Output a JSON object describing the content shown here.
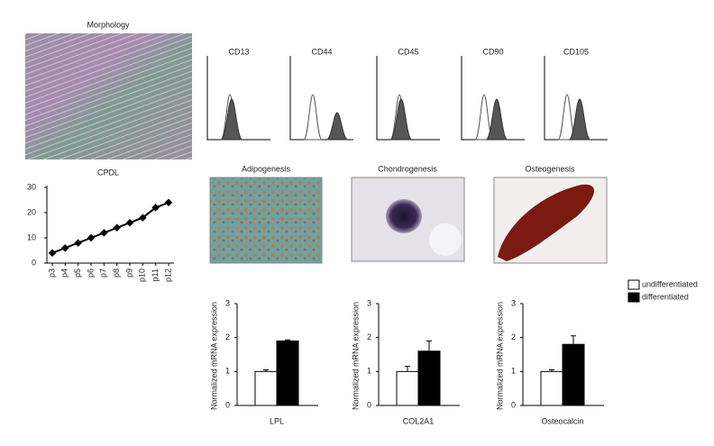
{
  "panels": {
    "morphology": {
      "title": "Morphology"
    },
    "flow_cytometry": [
      {
        "label": "CD13"
      },
      {
        "label": "CD44"
      },
      {
        "label": "CD45"
      },
      {
        "label": "CD90"
      },
      {
        "label": "CD105"
      }
    ],
    "differentiation": [
      {
        "label": "Adipogenesis"
      },
      {
        "label": "Chondrogenesis"
      },
      {
        "label": "Osteogenesis"
      }
    ]
  },
  "chart_data": [
    {
      "type": "line",
      "title": "CPDL",
      "categories": [
        "p3",
        "p4",
        "p5",
        "p6",
        "p7",
        "p8",
        "p9",
        "p10",
        "p11",
        "p12"
      ],
      "values": [
        4,
        6,
        8,
        10,
        12,
        14,
        16,
        18,
        22,
        24
      ],
      "color": "#000000",
      "ylim": [
        0,
        30
      ],
      "yticks": [
        0,
        10,
        20,
        30
      ]
    },
    {
      "type": "bar",
      "categories": [
        "LPL"
      ],
      "y_label": "Normalized mRNA expression",
      "series": [
        {
          "color": "#ffffff",
          "values": [
            1.0
          ],
          "errors": [
            0.05
          ]
        },
        {
          "color": "#000000",
          "values": [
            1.9
          ],
          "errors": [
            0.03
          ]
        }
      ],
      "ylim": [
        0,
        3
      ],
      "yticks": [
        0,
        1,
        2,
        3
      ]
    },
    {
      "type": "bar",
      "categories": [
        "COL2A1"
      ],
      "y_label": "Normalized mRNA expression",
      "series": [
        {
          "color": "#ffffff",
          "values": [
            1.0
          ],
          "errors": [
            0.15
          ]
        },
        {
          "color": "#000000",
          "values": [
            1.6
          ],
          "errors": [
            0.3
          ]
        }
      ],
      "ylim": [
        0,
        3
      ],
      "yticks": [
        0,
        1,
        2,
        3
      ]
    },
    {
      "type": "bar",
      "categories": [
        "Osteocalcin"
      ],
      "y_label": "Normalized mRNA expression",
      "series": [
        {
          "name": "undifferentiated",
          "color": "#ffffff",
          "values": [
            1.0
          ],
          "errors": [
            0.05
          ]
        },
        {
          "name": "differentiated",
          "color": "#000000",
          "values": [
            1.8
          ],
          "errors": [
            0.25
          ]
        }
      ],
      "ylim": [
        0,
        3
      ],
      "yticks": [
        0,
        1,
        2,
        3
      ]
    }
  ]
}
